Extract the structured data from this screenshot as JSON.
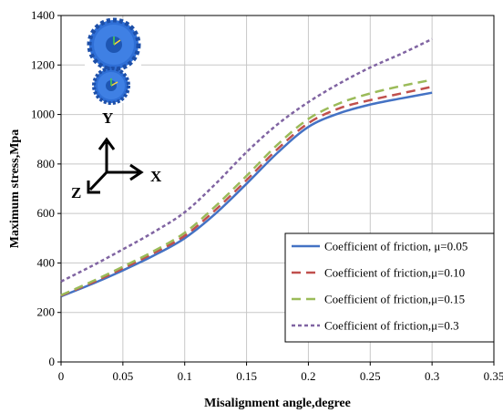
{
  "chart_data": {
    "type": "line",
    "title": "",
    "xlabel": "Misalignment angle,degree",
    "ylabel": "Maximum stress,Mpa",
    "xlim": [
      0,
      0.35
    ],
    "ylim": [
      0,
      1400
    ],
    "xticks": [
      "0",
      "0.05",
      "0.1",
      "0.15",
      "0.2",
      "0.25",
      "0.3",
      "0.35"
    ],
    "yticks": [
      "0",
      "200",
      "400",
      "600",
      "800",
      "1000",
      "1200",
      "1400"
    ],
    "grid": true,
    "legend_position": "bottom-right",
    "x": [
      0,
      0.025,
      0.05,
      0.075,
      0.1,
      0.125,
      0.15,
      0.175,
      0.2,
      0.225,
      0.25,
      0.275,
      0.3
    ],
    "series": [
      {
        "name": "Coefficient of friction, μ=0.05",
        "color": "#4472c4",
        "dash": "solid",
        "values": [
          265,
          315,
          370,
          430,
          500,
          600,
          720,
          845,
          950,
          1005,
          1040,
          1065,
          1088
        ]
      },
      {
        "name": "Coefficient of friction,μ=0.10",
        "color": "#c0504d",
        "dash": "long-dash",
        "values": [
          268,
          320,
          378,
          440,
          510,
          615,
          735,
          860,
          965,
          1025,
          1058,
          1085,
          1112
        ]
      },
      {
        "name": "Coefficient of friction,μ=0.15",
        "color": "#9bbb59",
        "dash": "long-dash",
        "values": [
          270,
          325,
          385,
          448,
          522,
          630,
          752,
          878,
          982,
          1045,
          1085,
          1115,
          1140
        ]
      },
      {
        "name": "Coefficient of friction,μ=0.3",
        "color": "#8064a2",
        "dash": "short-dash",
        "values": [
          325,
          388,
          455,
          525,
          605,
          720,
          848,
          960,
          1050,
          1125,
          1190,
          1245,
          1305
        ]
      }
    ]
  },
  "inset": {
    "axis_y": "Y",
    "axis_x": "X",
    "axis_z": "Z",
    "gear_color": "#2f6fd6"
  }
}
